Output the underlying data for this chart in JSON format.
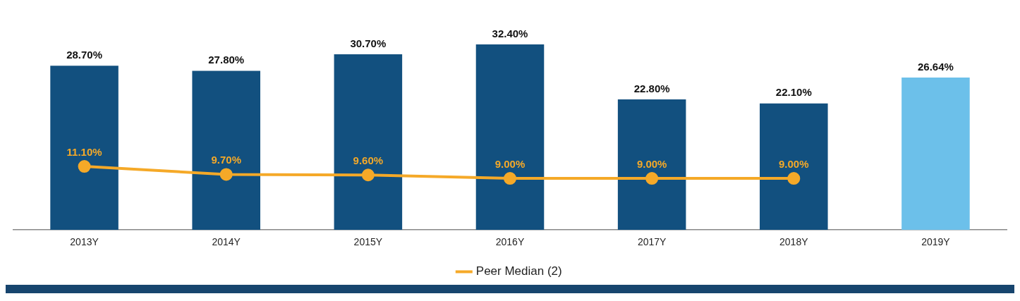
{
  "chart_data": {
    "type": "bar",
    "categories": [
      "2013Y",
      "2014Y",
      "2015Y",
      "2016Y",
      "2017Y",
      "2018Y",
      "2019Y"
    ],
    "series": [
      {
        "colors": [
          "#12507f",
          "#12507f",
          "#12507f",
          "#12507f",
          "#12507f",
          "#12507f",
          "#6cc0ea"
        ],
        "values": [
          28.7,
          27.8,
          30.7,
          32.4,
          22.8,
          22.1,
          26.64
        ],
        "value_labels": [
          "28.70%",
          "27.80%",
          "30.70%",
          "32.40%",
          "22.80%",
          "22.10%",
          "26.64%"
        ]
      },
      {
        "type": "line",
        "name": "Peer Median (2)",
        "color": "#f5a928",
        "values": [
          11.1,
          9.7,
          9.6,
          9.0,
          9.0,
          9.0,
          null
        ],
        "value_labels": [
          "11.10%",
          "9.70%",
          "9.60%",
          "9.00%",
          "9.00%",
          "9.00%",
          null
        ]
      }
    ],
    "legend": "bottom",
    "grid": false,
    "marker": "circle",
    "line_style": "solid"
  }
}
